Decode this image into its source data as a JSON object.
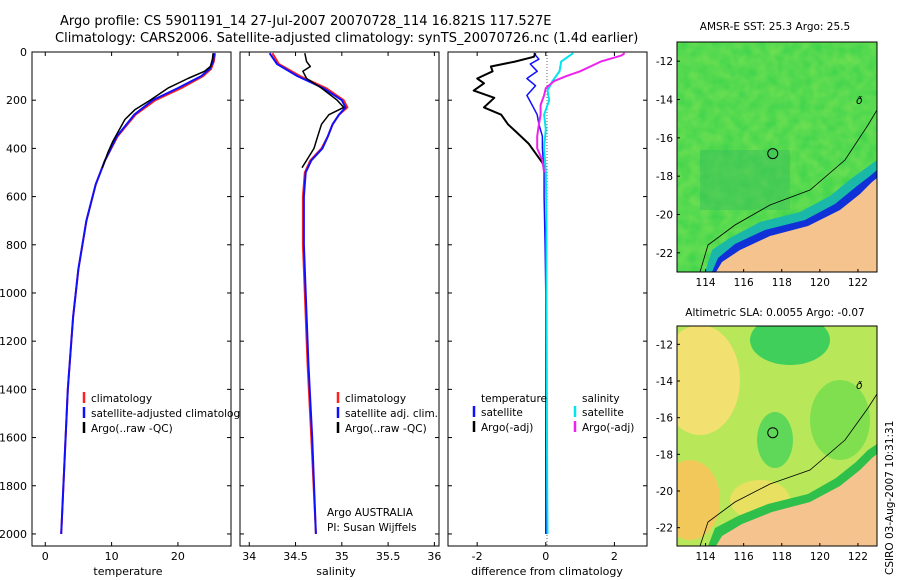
{
  "header": {
    "line1": "Argo profile: CS 5901191_14 27-Jul-2007 20070728_114 16.821S 117.527E",
    "line2": "Climatology: CARS2006. Satellite-adjusted climatology: synTS_20070726.nc (1.4d earlier)"
  },
  "side_text": "CSIRO 03-Aug-2007 10:31:31",
  "colors": {
    "climatology": "#ff2020",
    "satellite": "#1010ff",
    "argo": "#000000",
    "salinity_satellite": "#00e5ee",
    "salinity_argo": "#ee22ee",
    "land": "#f5c38e"
  },
  "chart_data": [
    {
      "type": "line",
      "name": "temperature-profile",
      "xlabel": "temperature",
      "ylabel": "",
      "xlim": [
        -2,
        28
      ],
      "ylim": [
        2050,
        0
      ],
      "xticks": [
        0,
        10,
        20
      ],
      "xtick_labels": [
        "0",
        "10",
        "20"
      ],
      "yticks": [
        0,
        200,
        400,
        600,
        800,
        1000,
        1200,
        1400,
        1600,
        1800,
        2000
      ],
      "ytick_labels": [
        "0",
        "200",
        "400",
        "600",
        "800",
        "1000",
        "1200",
        "1400",
        "1600",
        "1800",
        "2000"
      ],
      "legend": [
        "climatology",
        "satellite-adjusted climatology",
        "Argo(..raw -QC)"
      ],
      "series": [
        {
          "name": "climatology",
          "color": "#ff2020",
          "width": 2,
          "depth": [
            5,
            40,
            70,
            100,
            150,
            200,
            260,
            350,
            450,
            550,
            700,
            900,
            1100,
            1400,
            1700,
            2000
          ],
          "values": [
            25.6,
            25.4,
            25.0,
            23.8,
            20.5,
            16.6,
            13.6,
            10.9,
            9.0,
            7.6,
            6.2,
            5.0,
            4.2,
            3.4,
            2.9,
            2.4
          ]
        },
        {
          "name": "satellite-adjusted climatology",
          "color": "#1010ff",
          "width": 2,
          "depth": [
            5,
            40,
            70,
            100,
            150,
            200,
            260,
            350,
            450,
            550,
            700,
            900,
            1100,
            1400,
            1700,
            2000
          ],
          "values": [
            25.5,
            25.3,
            24.8,
            23.5,
            20.0,
            16.2,
            13.4,
            10.8,
            9.0,
            7.6,
            6.2,
            5.0,
            4.2,
            3.4,
            2.9,
            2.4
          ]
        },
        {
          "name": "Argo(..raw -QC)",
          "color": "#000000",
          "width": 1.5,
          "depth": [
            5,
            30,
            60,
            80,
            110,
            150,
            200,
            240,
            280,
            320,
            370,
            420,
            480
          ],
          "values": [
            25.3,
            25.2,
            24.9,
            24.0,
            21.5,
            18.5,
            15.8,
            13.5,
            12.0,
            11.2,
            10.2,
            9.4,
            8.6
          ]
        }
      ]
    },
    {
      "type": "line",
      "name": "salinity-profile",
      "xlabel": "salinity",
      "xlim": [
        33.9,
        36.05
      ],
      "ylim": [
        2050,
        0
      ],
      "xticks": [
        34,
        34.5,
        35,
        35.5,
        36
      ],
      "xtick_labels": [
        "34",
        "34.5",
        "35",
        "35.5",
        "36"
      ],
      "legend": [
        "climatology",
        "satellite adj. clim.",
        "Argo(..raw -QC)"
      ],
      "annotations": [
        "Argo AUSTRALIA",
        "PI: Susan Wijffels"
      ],
      "series": [
        {
          "name": "climatology",
          "color": "#ff2020",
          "width": 2,
          "depth": [
            5,
            50,
            100,
            150,
            200,
            230,
            260,
            300,
            350,
            400,
            450,
            500,
            600,
            800,
            1000,
            1300,
            1600,
            2000
          ],
          "values": [
            34.25,
            34.32,
            34.55,
            34.83,
            35.02,
            35.06,
            34.97,
            34.9,
            34.85,
            34.78,
            34.66,
            34.6,
            34.58,
            34.58,
            34.6,
            34.63,
            34.67,
            34.72
          ]
        },
        {
          "name": "satellite adj. clim.",
          "color": "#1010ff",
          "width": 2,
          "depth": [
            5,
            50,
            100,
            150,
            200,
            230,
            260,
            300,
            350,
            400,
            450,
            500,
            600,
            800,
            1000,
            1300,
            1600,
            2000
          ],
          "values": [
            34.22,
            34.3,
            34.52,
            34.8,
            35.0,
            35.04,
            34.97,
            34.9,
            34.85,
            34.79,
            34.67,
            34.61,
            34.59,
            34.59,
            34.61,
            34.64,
            34.68,
            34.72
          ]
        },
        {
          "name": "Argo(..raw -QC)",
          "color": "#000000",
          "width": 1.5,
          "depth": [
            5,
            40,
            60,
            80,
            110,
            150,
            200,
            230,
            260,
            300,
            350,
            400,
            450,
            480
          ],
          "values": [
            34.6,
            34.62,
            34.66,
            34.58,
            34.62,
            34.78,
            34.95,
            35.02,
            34.86,
            34.78,
            34.74,
            34.7,
            34.62,
            34.57
          ]
        }
      ]
    },
    {
      "type": "line",
      "name": "difference-profile",
      "xlabel": "difference from climatology",
      "xlim": [
        -2.85,
        2.95
      ],
      "ylim": [
        2050,
        0
      ],
      "xticks": [
        -2,
        0,
        2
      ],
      "xtick_labels": [
        "-2",
        "0",
        "2"
      ],
      "legend_left_title": "temperature",
      "legend_right_title": "salinity",
      "legend_left": [
        "satellite",
        "Argo(-adj)"
      ],
      "legend_right": [
        "satellite",
        "Argo(-adj)"
      ],
      "series": [
        {
          "name": "temperature satellite",
          "color": "#1010ff",
          "width": 1.5,
          "depth": [
            5,
            30,
            50,
            80,
            110,
            140,
            180,
            220,
            260,
            300,
            350,
            400,
            500,
            600,
            800,
            1000,
            1400,
            2000
          ],
          "values": [
            -0.35,
            -0.2,
            -0.45,
            -0.25,
            -0.55,
            -0.3,
            -0.55,
            -0.4,
            -0.25,
            -0.2,
            -0.1,
            -0.1,
            -0.05,
            -0.05,
            -0.02,
            0,
            0,
            0
          ]
        },
        {
          "name": "temperature Argo(-adj)",
          "color": "#000000",
          "width": 2,
          "depth": [
            5,
            20,
            40,
            60,
            80,
            110,
            130,
            160,
            190,
            230,
            260,
            300,
            340,
            380,
            420,
            460,
            500
          ],
          "values": [
            -0.3,
            -0.35,
            -0.9,
            -1.6,
            -1.55,
            -2.0,
            -1.8,
            -2.1,
            -1.5,
            -1.8,
            -1.3,
            -1.1,
            -0.8,
            -0.5,
            -0.3,
            -0.1,
            0
          ]
        },
        {
          "name": "salinity satellite",
          "color": "#00e5ee",
          "width": 2,
          "depth": [
            5,
            40,
            80,
            120,
            160,
            200,
            260,
            320,
            400,
            500,
            700,
            1000,
            1400,
            1800,
            2000
          ],
          "values": [
            0.8,
            0.45,
            0.4,
            0.2,
            0.05,
            0.1,
            -0.05,
            0.0,
            -0.05,
            0.0,
            0.02,
            0.02,
            0.03,
            0.04,
            0.05
          ]
        },
        {
          "name": "salinity Argo(-adj)",
          "color": "#ee22ee",
          "width": 2,
          "depth": [
            5,
            15,
            40,
            60,
            80,
            100,
            120,
            150,
            180,
            220,
            260,
            300,
            350,
            400,
            450,
            500
          ],
          "values": [
            2.3,
            2.2,
            1.6,
            1.3,
            1.0,
            0.6,
            0.25,
            0.0,
            -0.05,
            -0.15,
            -0.15,
            -0.2,
            -0.25,
            -0.25,
            -0.1,
            -0.05
          ]
        }
      ]
    },
    {
      "type": "heatmap",
      "name": "sst-map",
      "title": "AMSR-E SST: 25.3 Argo: 25.5",
      "xlim": [
        112.5,
        123
      ],
      "ylim": [
        -23,
        -11
      ],
      "xticks": [
        114,
        116,
        118,
        120,
        122
      ],
      "yticks": [
        -12,
        -14,
        -16,
        -18,
        -20,
        -22
      ],
      "argo_position": [
        117.527,
        -16.821
      ]
    },
    {
      "type": "heatmap",
      "name": "sla-map",
      "title": "Altimetric SLA: 0.0055 Argo: -0.07",
      "xlim": [
        112.5,
        123
      ],
      "ylim": [
        -23,
        -11
      ],
      "xticks": [
        114,
        116,
        118,
        120,
        122
      ],
      "yticks": [
        -12,
        -14,
        -16,
        -18,
        -20,
        -22
      ],
      "argo_position": [
        117.527,
        -16.821
      ]
    }
  ]
}
